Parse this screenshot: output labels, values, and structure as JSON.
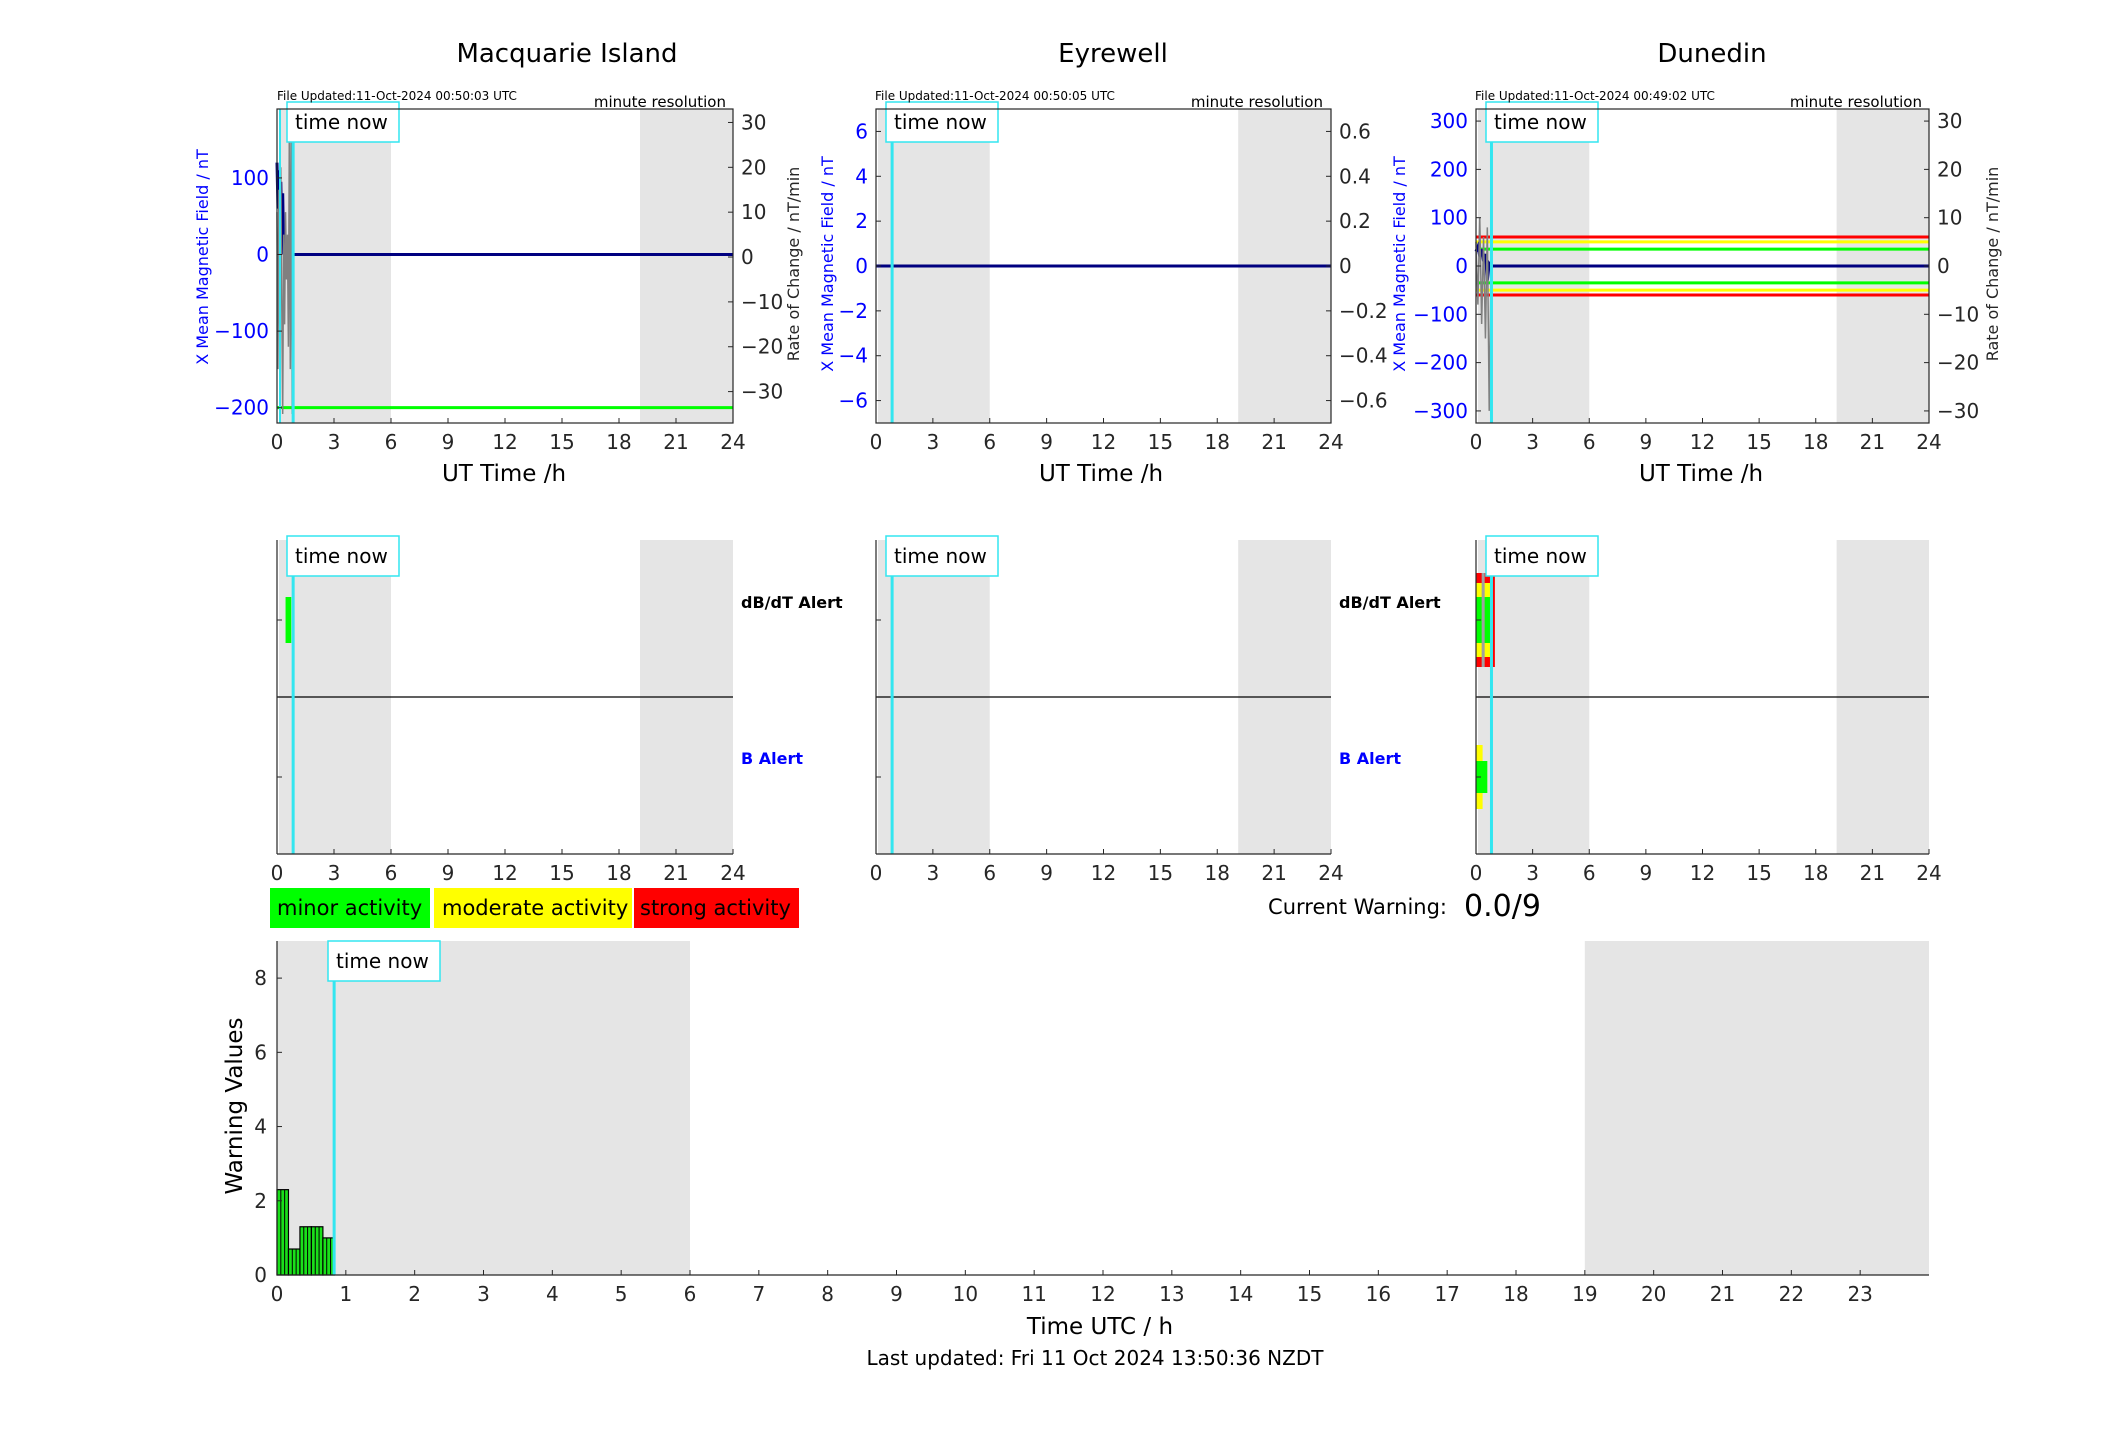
{
  "page": {
    "last_updated": "Last updated: Fri 11 Oct 2024 13:50:36 NZDT"
  },
  "colors": {
    "left_axis": "#0000ff",
    "trace": "#000080",
    "rate_trace": "#808080",
    "time_now": "#33e6f0",
    "night_shade": "#e5e5e5",
    "minor": "#00ff00",
    "moderate": "#ffff00",
    "strong": "#ff0000",
    "bar_fill": "#1ae01a"
  },
  "labels": {
    "time_now": "time now",
    "minute_resolution": "minute resolution",
    "x_axis": "UT Time /h",
    "left_axis": "X Mean Magnetic Field / nT",
    "right_axis": "Rate of Change / nT/min",
    "dbdt_alert": "dB/dT Alert",
    "b_alert": "B Alert"
  },
  "stations": [
    {
      "name": "Macquarie Island",
      "file_updated": "File Updated:11-Oct-2024 00:50:03 UTC"
    },
    {
      "name": "Eyrewell",
      "file_updated": "File Updated:11-Oct-2024 00:50:05 UTC"
    },
    {
      "name": "Dunedin",
      "file_updated": "File Updated:11-Oct-2024 00:49:02 UTC"
    }
  ],
  "legend": {
    "minor": "minor activity",
    "moderate": "moderate activity",
    "strong": "strong activity"
  },
  "current_warning": {
    "label": "Current Warning:",
    "value": "0.0/9"
  },
  "chart_data": [
    {
      "type": "line",
      "station": "Macquarie Island",
      "xlabel": "UT Time /h",
      "ylabel": "X Mean Magnetic Field / nT",
      "y2label": "Rate of Change / nT/min",
      "xlim": [
        0,
        24
      ],
      "xticks": [
        0,
        3,
        6,
        9,
        12,
        15,
        18,
        21,
        24
      ],
      "ylim": [
        -220,
        190
      ],
      "yticks": [
        -200,
        -100,
        0,
        100
      ],
      "y2lim": [
        -37,
        33
      ],
      "y2ticks": [
        -30,
        -20,
        -10,
        0,
        10,
        20,
        30
      ],
      "night_shading_hours": [
        [
          0,
          6
        ],
        [
          19,
          24
        ]
      ],
      "time_now_hour": 0.85,
      "threshold_lines": [
        {
          "y": -200,
          "color": "#00ff00"
        }
      ],
      "series": [
        {
          "axis": "left",
          "x": [
            0,
            0.05,
            0.1,
            0.15,
            0.2,
            0.25,
            0.3,
            0.35,
            0.4,
            0.45,
            0.5,
            0.55,
            0.6,
            0.65,
            0.7,
            0.75,
            0.8,
            24
          ],
          "y": [
            120,
            60,
            110,
            40,
            95,
            30,
            80,
            0,
            10,
            -10,
            20,
            -20,
            5,
            -60,
            0,
            -95,
            0,
            0
          ]
        },
        {
          "axis": "right",
          "x": [
            0,
            0.05,
            0.1,
            0.15,
            0.2,
            0.25,
            0.3,
            0.35,
            0.4,
            0.45,
            0.5,
            0.55,
            0.6,
            0.65,
            0.7,
            0.75,
            0.8,
            0.85
          ],
          "y": [
            10,
            -25,
            15,
            -20,
            20,
            -10,
            -35,
            5,
            -15,
            10,
            -5,
            5,
            -20,
            30,
            -25,
            30,
            -35,
            0
          ]
        }
      ],
      "alerts": {
        "dbdt": [
          {
            "x_start": 0.45,
            "x_end": 0.75,
            "level": "minor"
          }
        ],
        "b": []
      }
    },
    {
      "type": "line",
      "station": "Eyrewell",
      "xlabel": "UT Time /h",
      "ylabel": "X Mean Magnetic Field / nT",
      "y2label": "",
      "xlim": [
        0,
        24
      ],
      "xticks": [
        0,
        3,
        6,
        9,
        12,
        15,
        18,
        21,
        24
      ],
      "ylim": [
        -7,
        7
      ],
      "yticks": [
        -6,
        -4,
        -2,
        0,
        2,
        4,
        6
      ],
      "y2lim": [
        -0.7,
        0.7
      ],
      "y2ticks": [
        -0.6,
        -0.4,
        -0.2,
        0,
        0.2,
        0.4,
        0.6
      ],
      "night_shading_hours": [
        [
          0,
          6
        ],
        [
          19,
          24
        ]
      ],
      "time_now_hour": 0.85,
      "threshold_lines": [],
      "series": [
        {
          "axis": "left",
          "x": [
            0,
            24
          ],
          "y": [
            0,
            0
          ]
        }
      ],
      "alerts": {
        "dbdt": [],
        "b": []
      }
    },
    {
      "type": "line",
      "station": "Dunedin",
      "xlabel": "UT Time /h",
      "ylabel": "X Mean Magnetic Field / nT",
      "y2label": "Rate of Change / nT/min",
      "xlim": [
        0,
        24
      ],
      "xticks": [
        0,
        3,
        6,
        9,
        12,
        15,
        18,
        21,
        24
      ],
      "ylim": [
        -325,
        325
      ],
      "yticks": [
        -300,
        -200,
        -100,
        0,
        100,
        200,
        300
      ],
      "y2lim": [
        -32.5,
        32.5
      ],
      "y2ticks": [
        -30,
        -20,
        -10,
        0,
        10,
        20,
        30
      ],
      "night_shading_hours": [
        [
          0,
          6
        ],
        [
          19,
          24
        ]
      ],
      "time_now_hour": 0.82,
      "threshold_lines": [
        {
          "y": 60,
          "color": "#ff0000"
        },
        {
          "y": 50,
          "color": "#ffff00"
        },
        {
          "y": 35,
          "color": "#00ff00"
        },
        {
          "y": -35,
          "color": "#00ff00"
        },
        {
          "y": -50,
          "color": "#ffff00"
        },
        {
          "y": -60,
          "color": "#ff0000"
        }
      ],
      "series": [
        {
          "axis": "left",
          "x": [
            0,
            0.1,
            0.2,
            0.3,
            0.4,
            0.5,
            0.6,
            0.7,
            0.8,
            24
          ],
          "y": [
            30,
            40,
            20,
            35,
            10,
            25,
            -30,
            5,
            0,
            0
          ]
        },
        {
          "axis": "right",
          "x": [
            0,
            0.1,
            0.2,
            0.3,
            0.4,
            0.5,
            0.6,
            0.7,
            0.8
          ],
          "y": [
            5,
            -8,
            10,
            -12,
            6,
            -15,
            8,
            -30,
            0
          ]
        }
      ],
      "alerts": {
        "dbdt": [
          {
            "x_start": 0.0,
            "x_end": 1.0,
            "level": "strong"
          },
          {
            "x_start": 0.0,
            "x_end": 0.8,
            "level": "moderate"
          },
          {
            "x_start": 0.0,
            "x_end": 0.9,
            "level": "minor"
          }
        ],
        "b": [
          {
            "x_start": 0.0,
            "x_end": 0.35,
            "level": "moderate"
          },
          {
            "x_start": 0.0,
            "x_end": 0.6,
            "level": "minor"
          }
        ]
      }
    },
    {
      "type": "bar",
      "xlabel": "Time UTC / h",
      "ylabel": "Warning Values",
      "xlim": [
        0,
        24
      ],
      "xticks": [
        0,
        1,
        2,
        3,
        4,
        5,
        6,
        7,
        8,
        9,
        10,
        11,
        12,
        13,
        14,
        15,
        16,
        17,
        18,
        19,
        20,
        21,
        22,
        23
      ],
      "ylim": [
        0,
        9
      ],
      "yticks": [
        0,
        2,
        4,
        6,
        8
      ],
      "night_shading_hours": [
        [
          0,
          6
        ],
        [
          19,
          24
        ]
      ],
      "time_now_hour": 0.83,
      "bar_width_hours": 0.1667,
      "x": [
        0,
        0.1667,
        0.3333,
        0.5,
        0.6667
      ],
      "values": [
        2.3,
        0.7,
        1.3,
        1.3,
        1.0
      ]
    }
  ]
}
